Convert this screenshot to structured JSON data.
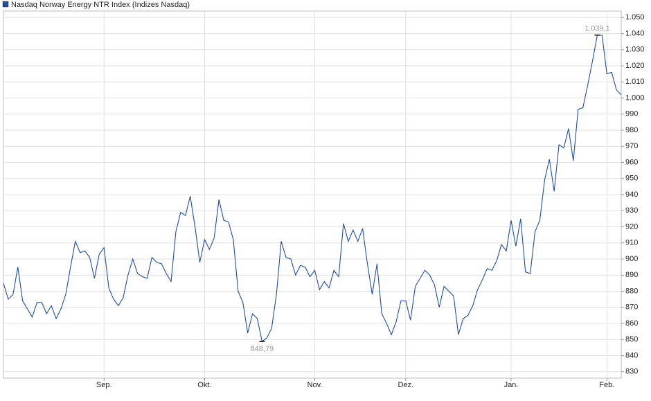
{
  "chart_data": {
    "type": "line",
    "series": [
      {
        "name": "Nasdaq Norway Energy NTR Index  (Indizes Nasdaq)",
        "color": "#1f4e9c",
        "values": [
          885,
          875,
          878,
          895,
          874,
          869,
          864,
          873,
          873,
          866,
          871,
          863,
          869,
          878,
          895,
          911,
          904,
          905,
          901,
          888,
          903,
          907,
          882,
          875,
          871,
          876,
          890,
          900,
          891,
          889,
          888,
          901,
          898,
          897,
          891,
          886,
          917,
          929,
          927,
          939,
          920,
          898,
          912,
          906,
          913,
          937,
          924,
          923,
          912,
          880,
          873,
          854,
          866,
          863,
          848.79,
          851,
          857,
          878,
          911,
          901,
          900,
          890,
          896,
          895,
          889,
          893,
          881,
          886,
          882,
          893,
          889,
          922,
          911,
          918,
          911,
          919,
          897,
          878,
          897,
          866,
          860,
          853,
          861,
          874,
          874,
          862,
          883,
          888,
          893,
          890,
          884,
          870,
          883,
          880,
          877,
          853,
          863,
          865,
          871,
          881,
          887,
          894,
          893,
          899,
          909,
          905,
          924,
          908,
          925,
          892,
          891,
          917,
          924,
          949,
          962,
          942,
          971,
          969,
          981,
          961,
          993,
          994,
          1008,
          1023,
          1039.1,
          1039,
          1015,
          1016,
          1005,
          1002
        ],
        "value_labels": [
          null,
          null,
          null,
          null,
          null,
          null,
          null,
          null,
          null,
          null,
          null,
          null,
          null,
          null,
          null,
          null,
          null,
          null,
          null,
          null,
          null,
          null,
          null,
          null,
          null,
          null,
          null,
          null,
          null,
          null,
          null,
          null,
          null,
          null,
          null,
          null,
          null,
          null,
          null,
          null,
          null,
          null,
          null,
          null,
          null,
          null,
          null,
          null,
          null,
          null,
          null,
          null,
          null,
          null,
          "848,79",
          null,
          null,
          null,
          null,
          null,
          null,
          null,
          null,
          null,
          null,
          null,
          null,
          null,
          null,
          null,
          null,
          null,
          null,
          null,
          null,
          null,
          null,
          null,
          null,
          null,
          null,
          null,
          null,
          null,
          null,
          null,
          null,
          null,
          null,
          null,
          null,
          null,
          null,
          null,
          null,
          null,
          null,
          null,
          null,
          null,
          null,
          null,
          null,
          null,
          null,
          null,
          null,
          null,
          null,
          null,
          null,
          null,
          null,
          null,
          null,
          null,
          null,
          null,
          null,
          null,
          null,
          null,
          null,
          null,
          "1.039,1",
          null,
          null,
          null,
          null,
          null
        ]
      }
    ],
    "categories": [
      null,
      null,
      null,
      null,
      null,
      null,
      null,
      null,
      null,
      null,
      null,
      null,
      null,
      null,
      null,
      null,
      null,
      null,
      null,
      null,
      null,
      "Sep.",
      null,
      null,
      null,
      null,
      null,
      null,
      null,
      null,
      null,
      null,
      null,
      null,
      null,
      null,
      null,
      null,
      null,
      null,
      null,
      null,
      "Okt.",
      null,
      null,
      null,
      null,
      null,
      null,
      null,
      null,
      null,
      null,
      null,
      null,
      null,
      null,
      null,
      null,
      null,
      null,
      null,
      null,
      null,
      null,
      "Nov.",
      null,
      null,
      null,
      null,
      null,
      null,
      null,
      null,
      null,
      null,
      null,
      null,
      null,
      null,
      null,
      null,
      null,
      null,
      "Dez.",
      null,
      null,
      null,
      null,
      null,
      null,
      null,
      null,
      null,
      null,
      null,
      null,
      null,
      null,
      null,
      null,
      null,
      null,
      null,
      null,
      null,
      "Jan.",
      null,
      null,
      null,
      null,
      null,
      null,
      null,
      null,
      null,
      null,
      null,
      null,
      null,
      null,
      null,
      null,
      null,
      null,
      null,
      "Feb.",
      null,
      null,
      null
    ],
    "ylim": [
      826,
      1054
    ],
    "yticks": [
      830,
      840,
      850,
      860,
      870,
      880,
      890,
      900,
      910,
      920,
      930,
      940,
      950,
      960,
      970,
      980,
      990,
      {
        "value": 1000,
        "label": "1.000"
      },
      {
        "value": 1010,
        "label": "1.010"
      },
      {
        "value": 1020,
        "label": "1.020"
      },
      {
        "value": 1030,
        "label": "1.030"
      },
      {
        "value": 1040,
        "label": "1.040"
      },
      {
        "value": 1050,
        "label": "1.050"
      }
    ],
    "grid": true
  }
}
